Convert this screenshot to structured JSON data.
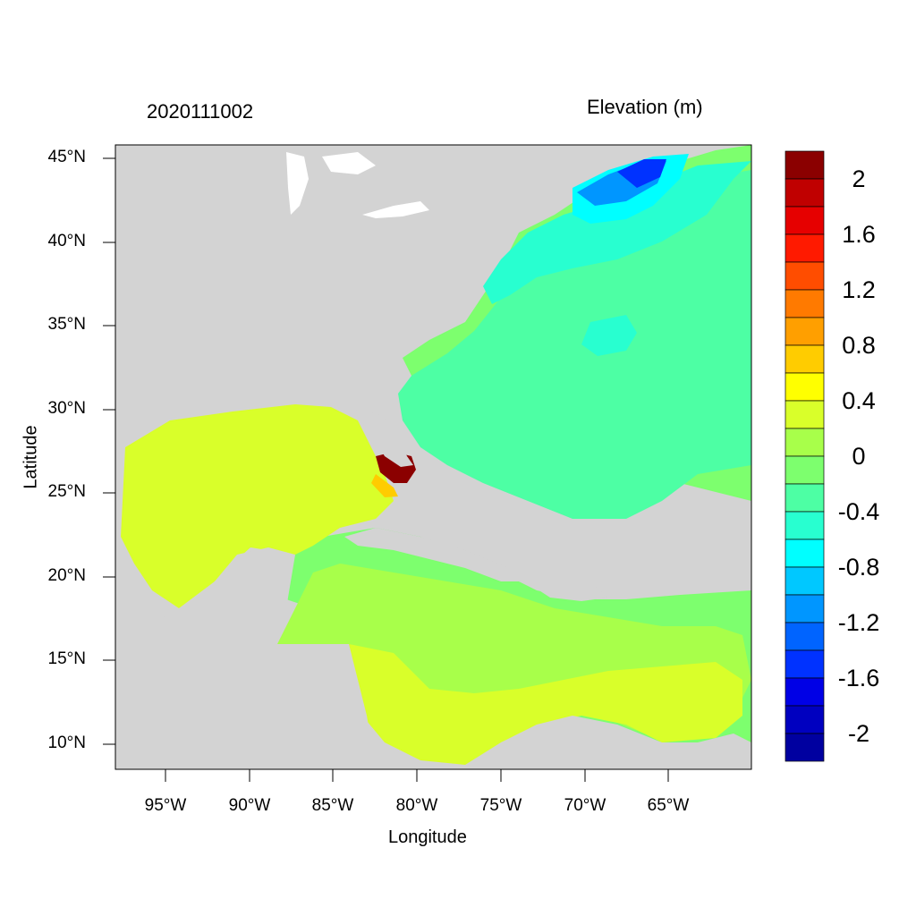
{
  "header": {
    "timestamp": "2020111002",
    "variable": "Elevation (m)"
  },
  "axes": {
    "xlabel": "Longitude",
    "ylabel": "Latitude",
    "x_ticks": [
      "95°W",
      "90°W",
      "85°W",
      "80°W",
      "75°W",
      "70°W",
      "65°W"
    ],
    "y_ticks": [
      "45°N",
      "40°N",
      "35°N",
      "30°N",
      "25°N",
      "20°N",
      "15°N",
      "10°N"
    ]
  },
  "colorbar": {
    "labels": [
      "2",
      "1.6",
      "1.2",
      "0.8",
      "0.4",
      "0",
      "-0.4",
      "-0.8",
      "-1.2",
      "-1.6",
      "-2"
    ],
    "colors": [
      "#8b0000",
      "#c00000",
      "#e60000",
      "#ff1a00",
      "#ff4d00",
      "#ff7a00",
      "#ff9f00",
      "#ffcc00",
      "#ffff00",
      "#d9ff2a",
      "#a8ff4a",
      "#7dff6e",
      "#4dffa4",
      "#28ffd0",
      "#00ffff",
      "#00c8ff",
      "#0096ff",
      "#0064ff",
      "#0032ff",
      "#0000e6",
      "#0000c0",
      "#0000a0"
    ]
  },
  "colors": {
    "land": "#d3d3d3",
    "lakes": "#ffffff"
  }
}
